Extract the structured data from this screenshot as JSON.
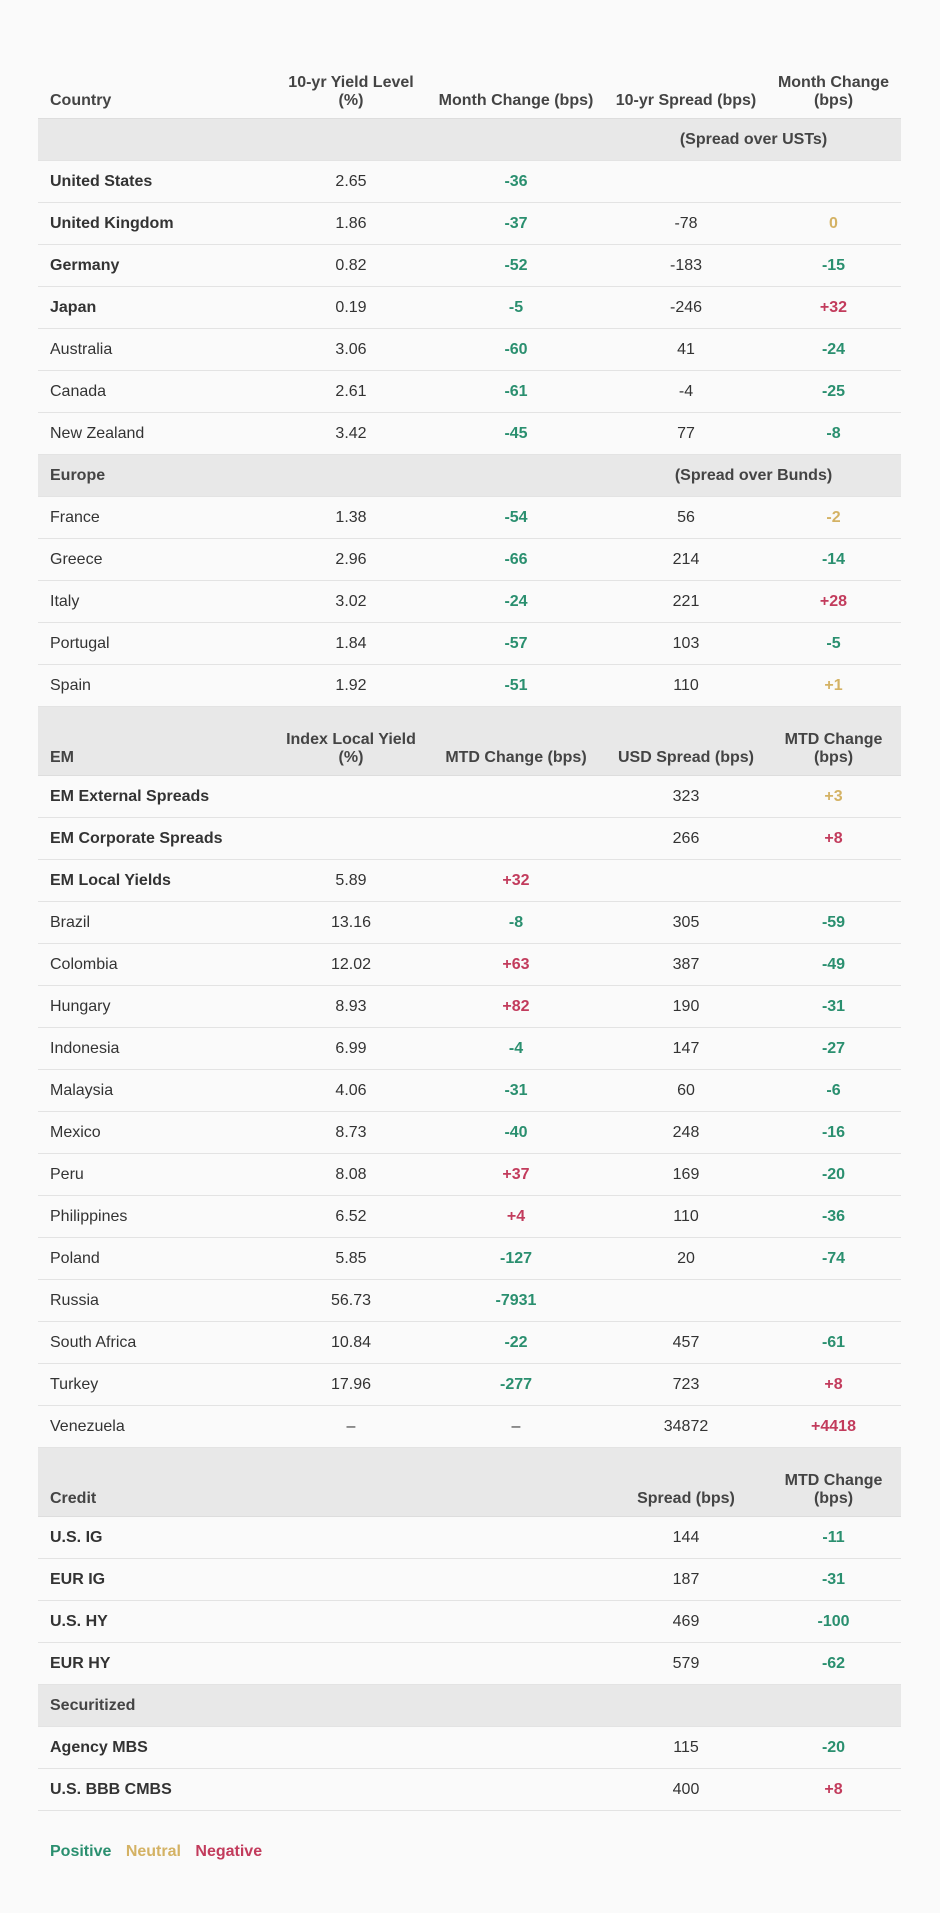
{
  "colors": {
    "positive": "#2a8f6f",
    "neutral": "#d4b264",
    "negative": "#c23b5c",
    "group_bg": "#e8e8e8"
  },
  "header": {
    "country": "Country",
    "c1": "10-yr Yield Level (%)",
    "c2": "Month Change (bps)",
    "c3": "10-yr Spread (bps)",
    "c4": "Month Change (bps)"
  },
  "sections": [
    {
      "type": "group",
      "name": "",
      "note": "(Spread over USTs)",
      "rows": [
        {
          "name": "United States",
          "bold": true,
          "v1": "2.65",
          "v2": "-36",
          "s2": "pos",
          "v3": "",
          "v4": "",
          "s4": ""
        },
        {
          "name": "United Kingdom",
          "bold": true,
          "v1": "1.86",
          "v2": "-37",
          "s2": "pos",
          "v3": "-78",
          "v4": "0",
          "s4": "neu"
        },
        {
          "name": "Germany",
          "bold": true,
          "v1": "0.82",
          "v2": "-52",
          "s2": "pos",
          "v3": "-183",
          "v4": "-15",
          "s4": "pos"
        },
        {
          "name": "Japan",
          "bold": true,
          "v1": "0.19",
          "v2": "-5",
          "s2": "pos",
          "v3": "-246",
          "v4": "+32",
          "s4": "neg"
        },
        {
          "name": "Australia",
          "v1": "3.06",
          "v2": "-60",
          "s2": "pos",
          "v3": "41",
          "v4": "-24",
          "s4": "pos"
        },
        {
          "name": "Canada",
          "v1": "2.61",
          "v2": "-61",
          "s2": "pos",
          "v3": "-4",
          "v4": "-25",
          "s4": "pos"
        },
        {
          "name": "New Zealand",
          "v1": "3.42",
          "v2": "-45",
          "s2": "pos",
          "v3": "77",
          "v4": "-8",
          "s4": "pos"
        }
      ]
    },
    {
      "type": "group",
      "name": "Europe",
      "note": "(Spread over Bunds)",
      "rows": [
        {
          "name": "France",
          "v1": "1.38",
          "v2": "-54",
          "s2": "pos",
          "v3": "56",
          "v4": "-2",
          "s4": "neu"
        },
        {
          "name": "Greece",
          "v1": "2.96",
          "v2": "-66",
          "s2": "pos",
          "v3": "214",
          "v4": "-14",
          "s4": "pos"
        },
        {
          "name": "Italy",
          "v1": "3.02",
          "v2": "-24",
          "s2": "pos",
          "v3": "221",
          "v4": "+28",
          "s4": "neg"
        },
        {
          "name": "Portugal",
          "v1": "1.84",
          "v2": "-57",
          "s2": "pos",
          "v3": "103",
          "v4": "-5",
          "s4": "pos"
        },
        {
          "name": "Spain",
          "v1": "1.92",
          "v2": "-51",
          "s2": "pos",
          "v3": "110",
          "v4": "+1",
          "s4": "neu"
        }
      ]
    },
    {
      "type": "sub",
      "name": "EM",
      "h1": "Index Local Yield (%)",
      "h2": "MTD Change (bps)",
      "h3": "USD Spread (bps)",
      "h4": "MTD Change (bps)",
      "rows": [
        {
          "name": "EM External Spreads",
          "bold": true,
          "v1": "",
          "v2": "",
          "s2": "",
          "v3": "323",
          "v4": "+3",
          "s4": "neu"
        },
        {
          "name": "EM Corporate Spreads",
          "bold": true,
          "v1": "",
          "v2": "",
          "s2": "",
          "v3": "266",
          "v4": "+8",
          "s4": "neg"
        },
        {
          "name": "EM Local Yields",
          "bold": true,
          "v1": "5.89",
          "v2": "+32",
          "s2": "neg",
          "v3": "",
          "v4": "",
          "s4": ""
        },
        {
          "name": "Brazil",
          "v1": "13.16",
          "v2": "-8",
          "s2": "pos",
          "v3": "305",
          "v4": "-59",
          "s4": "pos"
        },
        {
          "name": "Colombia",
          "v1": "12.02",
          "v2": "+63",
          "s2": "neg",
          "v3": "387",
          "v4": "-49",
          "s4": "pos"
        },
        {
          "name": "Hungary",
          "v1": "8.93",
          "v2": "+82",
          "s2": "neg",
          "v3": "190",
          "v4": "-31",
          "s4": "pos"
        },
        {
          "name": "Indonesia",
          "v1": "6.99",
          "v2": "-4",
          "s2": "pos",
          "v3": "147",
          "v4": "-27",
          "s4": "pos"
        },
        {
          "name": "Malaysia",
          "v1": "4.06",
          "v2": "-31",
          "s2": "pos",
          "v3": "60",
          "v4": "-6",
          "s4": "pos"
        },
        {
          "name": "Mexico",
          "v1": "8.73",
          "v2": "-40",
          "s2": "pos",
          "v3": "248",
          "v4": "-16",
          "s4": "pos"
        },
        {
          "name": "Peru",
          "v1": "8.08",
          "v2": "+37",
          "s2": "neg",
          "v3": "169",
          "v4": "-20",
          "s4": "pos"
        },
        {
          "name": "Philippines",
          "v1": "6.52",
          "v2": "+4",
          "s2": "neg",
          "v3": "110",
          "v4": "-36",
          "s4": "pos"
        },
        {
          "name": "Poland",
          "v1": "5.85",
          "v2": "-127",
          "s2": "pos",
          "v3": "20",
          "v4": "-74",
          "s4": "pos"
        },
        {
          "name": "Russia",
          "v1": "56.73",
          "v2": "-7931",
          "s2": "pos",
          "v3": "",
          "v4": "",
          "s4": ""
        },
        {
          "name": "South Africa",
          "v1": "10.84",
          "v2": "-22",
          "s2": "pos",
          "v3": "457",
          "v4": "-61",
          "s4": "pos"
        },
        {
          "name": "Turkey",
          "v1": "17.96",
          "v2": "-277",
          "s2": "pos",
          "v3": "723",
          "v4": "+8",
          "s4": "neg"
        },
        {
          "name": "Venezuela",
          "v1": "–",
          "v2": "–",
          "s2": "",
          "v3": "34872",
          "v4": "+4418",
          "s4": "neg"
        }
      ]
    },
    {
      "type": "sub",
      "name": "Credit",
      "h1": "",
      "h2": "",
      "h3": "Spread (bps)",
      "h4": "MTD Change (bps)",
      "rows": [
        {
          "name": "U.S. IG",
          "bold": true,
          "v1": "",
          "v2": "",
          "s2": "",
          "v3": "144",
          "v4": "-11",
          "s4": "pos"
        },
        {
          "name": "EUR IG",
          "bold": true,
          "v1": "",
          "v2": "",
          "s2": "",
          "v3": "187",
          "v4": "-31",
          "s4": "pos"
        },
        {
          "name": "U.S. HY",
          "bold": true,
          "v1": "",
          "v2": "",
          "s2": "",
          "v3": "469",
          "v4": "-100",
          "s4": "pos"
        },
        {
          "name": "EUR HY",
          "bold": true,
          "v1": "",
          "v2": "",
          "s2": "",
          "v3": "579",
          "v4": "-62",
          "s4": "pos"
        }
      ]
    },
    {
      "type": "group",
      "name": "Securitized",
      "note": "",
      "rows": [
        {
          "name": "Agency MBS",
          "bold": true,
          "v1": "",
          "v2": "",
          "s2": "",
          "v3": "115",
          "v4": "-20",
          "s4": "pos"
        },
        {
          "name": "U.S. BBB CMBS",
          "bold": true,
          "v1": "",
          "v2": "",
          "s2": "",
          "v3": "400",
          "v4": "+8",
          "s4": "neg"
        }
      ]
    }
  ],
  "legend": {
    "positive": "Positive",
    "neutral": "Neutral",
    "negative": "Negative"
  }
}
